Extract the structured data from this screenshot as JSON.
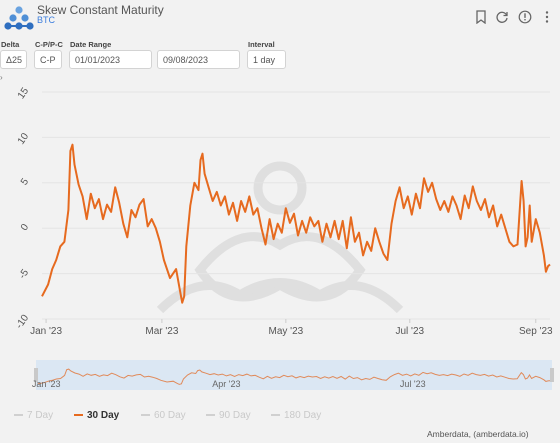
{
  "header": {
    "title": "Skew Constant Maturity",
    "subtitle": "BTC",
    "icons": [
      "bookmark-icon",
      "refresh-icon",
      "info-icon",
      "more-icon"
    ]
  },
  "controls": {
    "delta": {
      "label": "Delta",
      "value": "Δ25"
    },
    "cp": {
      "label": "C-P/P-C",
      "value": "C-P"
    },
    "date_range": {
      "label": "Date Range",
      "start": "01/01/2023",
      "end": "09/08/2023"
    },
    "interval": {
      "label": "Interval",
      "value": "1 day"
    }
  },
  "colors": {
    "series": "#e66a1f",
    "background": "#f2f2f2",
    "navigator_fill": "#cfe0f0"
  },
  "chart_data": {
    "type": "line",
    "series_name": "30 Day",
    "x_ticks": [
      "Jan '23",
      "Mar '23",
      "May '23",
      "Jul '23",
      "Sep '23"
    ],
    "y_ticks": [
      "15",
      "10",
      "5",
      "0",
      "-5",
      "-10"
    ],
    "ylim": [
      -10,
      15
    ],
    "x_start": "2023-01-01",
    "x_end": "2023-09-08",
    "points": [
      [
        "2023-01-01",
        -7.5
      ],
      [
        "2023-01-04",
        -6.2
      ],
      [
        "2023-01-06",
        -4.5
      ],
      [
        "2023-01-08",
        -3.5
      ],
      [
        "2023-01-10",
        -2.0
      ],
      [
        "2023-01-12",
        -1.5
      ],
      [
        "2023-01-14",
        2.0
      ],
      [
        "2023-01-15",
        8.5
      ],
      [
        "2023-01-16",
        9.2
      ],
      [
        "2023-01-17",
        7.0
      ],
      [
        "2023-01-19",
        4.8
      ],
      [
        "2023-01-21",
        3.5
      ],
      [
        "2023-01-23",
        1.0
      ],
      [
        "2023-01-25",
        3.8
      ],
      [
        "2023-01-27",
        2.2
      ],
      [
        "2023-01-29",
        3.2
      ],
      [
        "2023-01-31",
        1.0
      ],
      [
        "2023-02-02",
        2.6
      ],
      [
        "2023-02-04",
        1.8
      ],
      [
        "2023-02-06",
        4.5
      ],
      [
        "2023-02-08",
        2.8
      ],
      [
        "2023-02-10",
        0.5
      ],
      [
        "2023-02-12",
        -1.0
      ],
      [
        "2023-02-14",
        2.0
      ],
      [
        "2023-02-16",
        1.2
      ],
      [
        "2023-02-18",
        2.6
      ],
      [
        "2023-02-20",
        3.2
      ],
      [
        "2023-02-22",
        0.2
      ],
      [
        "2023-02-24",
        1.0
      ],
      [
        "2023-02-26",
        0.0
      ],
      [
        "2023-02-28",
        -1.5
      ],
      [
        "2023-03-02",
        -3.5
      ],
      [
        "2023-03-05",
        -5.5
      ],
      [
        "2023-03-08",
        -4.5
      ],
      [
        "2023-03-10",
        -7.0
      ],
      [
        "2023-03-11",
        -8.2
      ],
      [
        "2023-03-12",
        -7.5
      ],
      [
        "2023-03-13",
        -2.0
      ],
      [
        "2023-03-15",
        2.5
      ],
      [
        "2023-03-17",
        5.0
      ],
      [
        "2023-03-19",
        4.2
      ],
      [
        "2023-03-20",
        7.5
      ],
      [
        "2023-03-21",
        8.2
      ],
      [
        "2023-03-22",
        6.0
      ],
      [
        "2023-03-24",
        4.5
      ],
      [
        "2023-03-26",
        3.0
      ],
      [
        "2023-03-28",
        4.0
      ],
      [
        "2023-03-30",
        2.5
      ],
      [
        "2023-04-01",
        3.5
      ],
      [
        "2023-04-03",
        1.5
      ],
      [
        "2023-04-05",
        2.8
      ],
      [
        "2023-04-07",
        0.8
      ],
      [
        "2023-04-09",
        3.0
      ],
      [
        "2023-04-11",
        1.8
      ],
      [
        "2023-04-13",
        3.5
      ],
      [
        "2023-04-15",
        1.5
      ],
      [
        "2023-04-17",
        2.2
      ],
      [
        "2023-04-19",
        0.0
      ],
      [
        "2023-04-21",
        -1.8
      ],
      [
        "2023-04-23",
        1.0
      ],
      [
        "2023-04-25",
        -1.2
      ],
      [
        "2023-04-27",
        0.5
      ],
      [
        "2023-04-29",
        -0.5
      ],
      [
        "2023-05-01",
        2.2
      ],
      [
        "2023-05-03",
        0.6
      ],
      [
        "2023-05-05",
        1.6
      ],
      [
        "2023-05-07",
        -0.8
      ],
      [
        "2023-05-09",
        0.8
      ],
      [
        "2023-05-11",
        -0.5
      ],
      [
        "2023-05-13",
        1.2
      ],
      [
        "2023-05-15",
        0.2
      ],
      [
        "2023-05-17",
        0.8
      ],
      [
        "2023-05-19",
        -1.5
      ],
      [
        "2023-05-21",
        0.5
      ],
      [
        "2023-05-23",
        -1.0
      ],
      [
        "2023-05-25",
        0.8
      ],
      [
        "2023-05-27",
        -1.2
      ],
      [
        "2023-05-29",
        0.8
      ],
      [
        "2023-05-31",
        -2.2
      ],
      [
        "2023-06-02",
        1.2
      ],
      [
        "2023-06-04",
        -1.5
      ],
      [
        "2023-06-06",
        -0.5
      ],
      [
        "2023-06-08",
        -3.0
      ],
      [
        "2023-06-10",
        -1.5
      ],
      [
        "2023-06-12",
        -2.5
      ],
      [
        "2023-06-14",
        0.0
      ],
      [
        "2023-06-16",
        -1.5
      ],
      [
        "2023-06-18",
        -2.8
      ],
      [
        "2023-06-20",
        -3.5
      ],
      [
        "2023-06-22",
        0.5
      ],
      [
        "2023-06-24",
        3.0
      ],
      [
        "2023-06-26",
        4.5
      ],
      [
        "2023-06-28",
        2.2
      ],
      [
        "2023-06-30",
        3.5
      ],
      [
        "2023-07-02",
        1.5
      ],
      [
        "2023-07-04",
        3.8
      ],
      [
        "2023-07-06",
        2.2
      ],
      [
        "2023-07-08",
        5.5
      ],
      [
        "2023-07-10",
        4.0
      ],
      [
        "2023-07-12",
        5.0
      ],
      [
        "2023-07-14",
        3.2
      ],
      [
        "2023-07-16",
        2.0
      ],
      [
        "2023-07-18",
        3.0
      ],
      [
        "2023-07-20",
        1.8
      ],
      [
        "2023-07-22",
        3.5
      ],
      [
        "2023-07-24",
        2.5
      ],
      [
        "2023-07-26",
        1.0
      ],
      [
        "2023-07-28",
        3.6
      ],
      [
        "2023-07-30",
        2.2
      ],
      [
        "2023-08-01",
        4.6
      ],
      [
        "2023-08-03",
        3.0
      ],
      [
        "2023-08-05",
        2.0
      ],
      [
        "2023-08-07",
        3.2
      ],
      [
        "2023-08-09",
        1.2
      ],
      [
        "2023-08-11",
        2.5
      ],
      [
        "2023-08-13",
        0.2
      ],
      [
        "2023-08-15",
        1.5
      ],
      [
        "2023-08-17",
        0.0
      ],
      [
        "2023-08-19",
        -1.5
      ],
      [
        "2023-08-21",
        -2.0
      ],
      [
        "2023-08-23",
        -1.8
      ],
      [
        "2023-08-25",
        5.2
      ],
      [
        "2023-08-26",
        3.0
      ],
      [
        "2023-08-27",
        -2.0
      ],
      [
        "2023-08-28",
        -1.0
      ],
      [
        "2023-08-29",
        2.5
      ],
      [
        "2023-08-30",
        -1.5
      ],
      [
        "2023-09-01",
        1.0
      ],
      [
        "2023-09-03",
        -0.5
      ],
      [
        "2023-09-05",
        -3.0
      ],
      [
        "2023-09-06",
        -4.8
      ],
      [
        "2023-09-07",
        -4.2
      ],
      [
        "2023-09-08",
        -4.0
      ]
    ],
    "navigator": {
      "x_ticks": [
        "Jan '23",
        "Apr '23",
        "Jul '23"
      ]
    }
  },
  "legend": {
    "items": [
      {
        "label": "7 Day",
        "active": false
      },
      {
        "label": "30 Day",
        "active": true
      },
      {
        "label": "60 Day",
        "active": false
      },
      {
        "label": "90 Day",
        "active": false
      },
      {
        "label": "180 Day",
        "active": false
      }
    ]
  },
  "credit": "Amberdata, (amberdata.io)"
}
